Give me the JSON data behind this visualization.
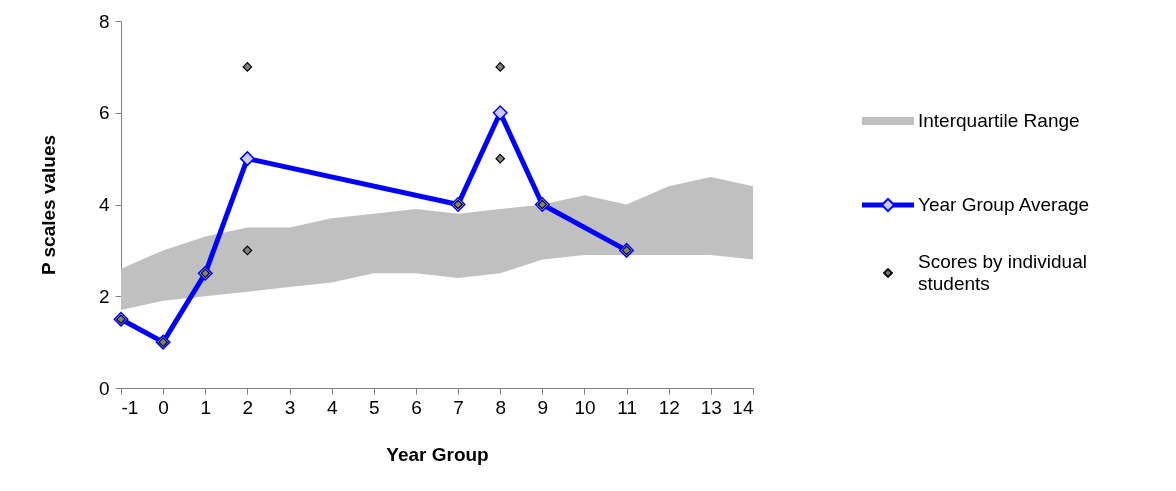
{
  "chart_data": {
    "type": "line",
    "xlabel": "Year Group",
    "ylabel": "P scales values",
    "xlim": [
      -1,
      14
    ],
    "xticks": [
      -1,
      0,
      1,
      2,
      3,
      4,
      5,
      6,
      7,
      8,
      9,
      10,
      11,
      12,
      13,
      14
    ],
    "ylim": [
      0,
      8
    ],
    "yticks": [
      0,
      2,
      4,
      6,
      8
    ],
    "grid": false,
    "legend": "right",
    "marker": "diamond",
    "series": [
      {
        "name": "Interquartile Range",
        "type": "area",
        "marker": "none",
        "color": "#c0c0c0",
        "x": [
          -1,
          0,
          1,
          2,
          3,
          4,
          5,
          6,
          7,
          8,
          9,
          10,
          11,
          12,
          13,
          14
        ],
        "values": [
          2.6,
          3.0,
          3.3,
          3.5,
          3.5,
          3.7,
          3.8,
          3.9,
          3.8,
          3.9,
          4.0,
          4.2,
          4.0,
          4.4,
          4.6,
          4.4
        ]
      },
      {
        "type": "area",
        "marker": "none",
        "color": "#ffffff",
        "x": [
          -1,
          0,
          1,
          2,
          3,
          4,
          5,
          6,
          7,
          8,
          9,
          10,
          11,
          12,
          13,
          14
        ],
        "values": [
          1.7,
          1.9,
          2.0,
          2.1,
          2.2,
          2.3,
          2.5,
          2.5,
          2.4,
          2.5,
          2.8,
          2.9,
          2.9,
          2.9,
          2.9,
          2.8
        ]
      },
      {
        "name": "Year Group Average",
        "color": "#0000ff",
        "x": [
          -1,
          0,
          1,
          2,
          7,
          8,
          9,
          11
        ],
        "values": [
          1.5,
          1,
          2.5,
          5,
          4,
          6,
          4,
          3
        ]
      },
      {
        "name": "Scores by individual students",
        "type": "scatter",
        "color": "#808080",
        "x": [
          -1,
          0,
          1,
          2,
          2,
          7,
          8,
          8,
          9,
          11
        ],
        "values": [
          1.5,
          1,
          2.5,
          7,
          3,
          4,
          7,
          5,
          4,
          3
        ]
      }
    ]
  }
}
